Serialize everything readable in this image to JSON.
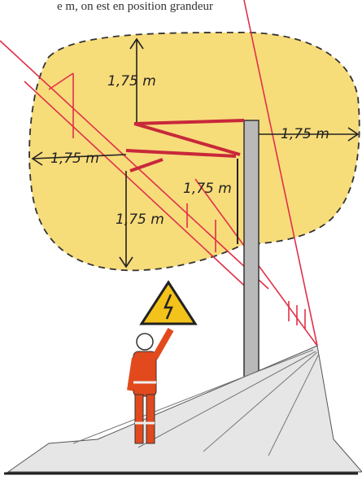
{
  "caption": "e m, on est en position grandeur",
  "distance_labels": [
    "1,75 m",
    "1,75 m",
    "1,75 m",
    "1,75 m",
    "1,75 m"
  ]
}
